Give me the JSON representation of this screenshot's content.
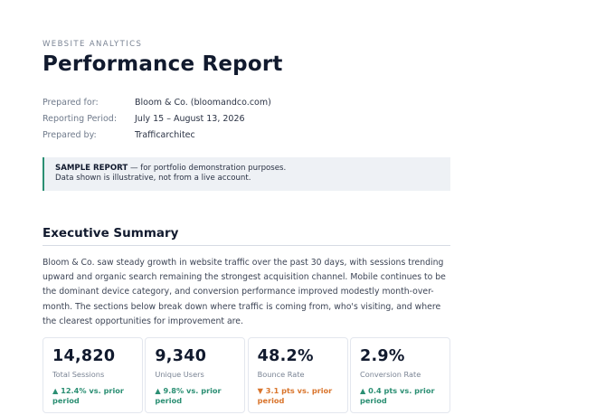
{
  "header": {
    "eyebrow": "WEBSITE ANALYTICS",
    "title": "Performance Report"
  },
  "meta": [
    {
      "label": "Prepared for:",
      "value": "Bloom & Co. (bloomandco.com)"
    },
    {
      "label": "Reporting Period:",
      "value": "July 15 – August 13, 2026"
    },
    {
      "label": "Prepared by:",
      "value": "Trafficarchitec"
    }
  ],
  "notice": {
    "strong": "SAMPLE REPORT",
    "text": " — for portfolio demonstration purposes.",
    "line2": "Data shown is illustrative, not from a live account."
  },
  "summary": {
    "heading": "Executive Summary",
    "body": "Bloom & Co. saw steady growth in website traffic over the past 30 days, with sessions trending upward and organic search remaining the strongest acquisition channel. Mobile continues to be the dominant device category, and conversion performance improved modestly month-over-month. The sections below break down where traffic is coming from, who's visiting, and where the clearest opportunities for improvement are."
  },
  "kpis": [
    {
      "value": "14,820",
      "label": "Total Sessions",
      "delta": "▲ 12.4% vs. prior period",
      "trend": "up"
    },
    {
      "value": "9,340",
      "label": "Unique Users",
      "delta": "▲ 9.8% vs. prior period",
      "trend": "up"
    },
    {
      "value": "48.2%",
      "label": "Bounce Rate",
      "delta": "▼ 3.1 pts vs. prior period",
      "trend": "down"
    },
    {
      "value": "2.9%",
      "label": "Conversion Rate",
      "delta": "▲ 0.4 pts vs. prior period",
      "trend": "up"
    }
  ],
  "colors": {
    "accent": "#2b8f73",
    "negative": "#d9742b",
    "title": "#111a2e"
  }
}
